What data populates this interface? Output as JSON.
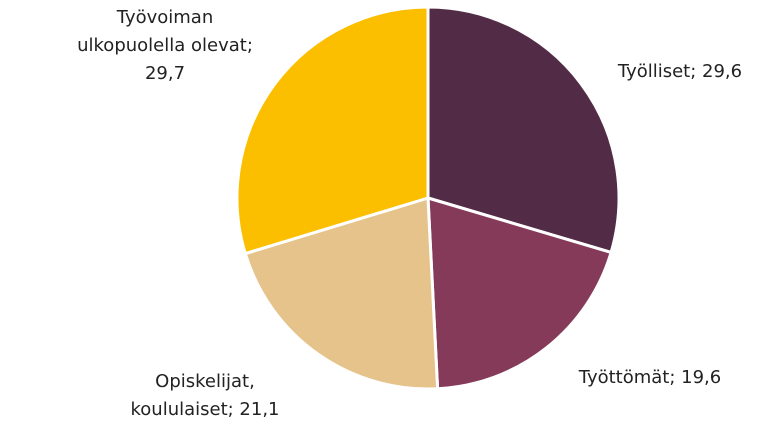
{
  "chart_data": {
    "type": "pie",
    "values": [
      29.6,
      19.6,
      21.1,
      29.7
    ],
    "value_labels": [
      "Työlliset; 29,6",
      "Työttömät; 19,6",
      "Opiskelijat,\nkoululaiset; 21,1",
      "Työvoiman\nulkopuolella olevat;\n29,7"
    ],
    "colors": [
      "#522c46",
      "#853a5a",
      "#e5c38b",
      "#fbbf00"
    ]
  }
}
